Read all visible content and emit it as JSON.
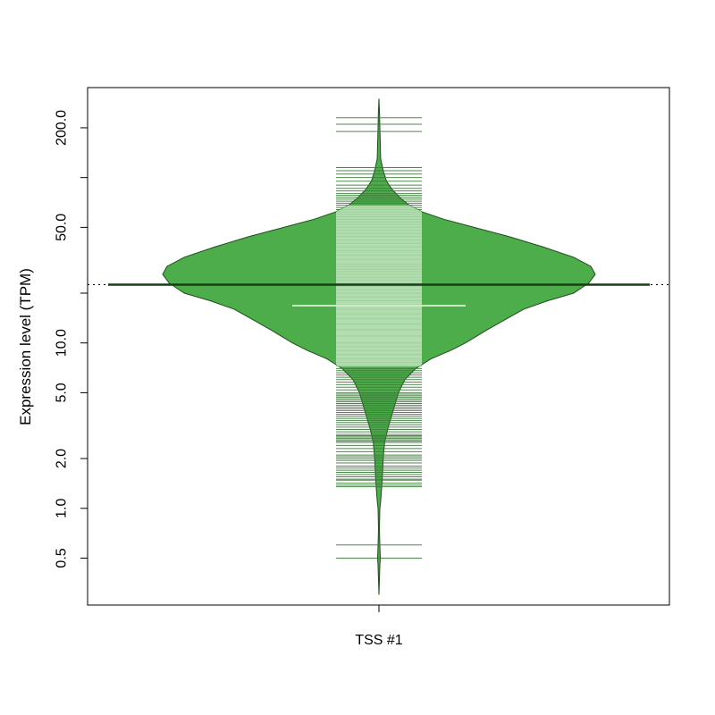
{
  "chart_data": {
    "type": "violin",
    "ylabel": "Expression level (TPM)",
    "y_scale": "log",
    "ylim": [
      0.26,
      350
    ],
    "y_ticks": [
      {
        "value": 0.5,
        "label": "0.5"
      },
      {
        "value": 1.0,
        "label": "1.0"
      },
      {
        "value": 2.0,
        "label": "2.0"
      },
      {
        "value": 5.0,
        "label": "5.0"
      },
      {
        "value": 10.0,
        "label": "10.0"
      },
      {
        "value": 20.0,
        "label": ""
      },
      {
        "value": 50.0,
        "label": "50.0"
      },
      {
        "value": 100.0,
        "label": ""
      },
      {
        "value": 200.0,
        "label": "200.0"
      }
    ],
    "categories": [
      "TSS #1"
    ],
    "overall_mean": 22.5,
    "group": {
      "name": "TSS #1",
      "mean": 22.5,
      "median": 16.8,
      "box_low": 7.2,
      "box_high": 68,
      "min": 0.3,
      "max": 300,
      "density": [
        [
          0.3,
          0.0
        ],
        [
          0.45,
          0.004
        ],
        [
          0.5,
          0.006
        ],
        [
          0.6,
          0.004
        ],
        [
          0.75,
          0.002
        ],
        [
          1.0,
          0.004
        ],
        [
          1.1,
          0.008
        ],
        [
          1.3,
          0.012
        ],
        [
          1.6,
          0.016
        ],
        [
          2.0,
          0.02
        ],
        [
          2.5,
          0.026
        ],
        [
          3.0,
          0.04
        ],
        [
          3.5,
          0.055
        ],
        [
          4.0,
          0.068
        ],
        [
          5.0,
          0.09
        ],
        [
          6.0,
          0.12
        ],
        [
          7.0,
          0.17
        ],
        [
          8.0,
          0.24
        ],
        [
          9.0,
          0.33
        ],
        [
          10.0,
          0.4
        ],
        [
          12.0,
          0.5
        ],
        [
          14.0,
          0.59
        ],
        [
          16.0,
          0.67
        ],
        [
          18.0,
          0.78
        ],
        [
          20.0,
          0.9
        ],
        [
          23.0,
          0.97
        ],
        [
          26.0,
          1.0
        ],
        [
          29.0,
          0.98
        ],
        [
          33.0,
          0.9
        ],
        [
          38.0,
          0.76
        ],
        [
          44.0,
          0.6
        ],
        [
          50.0,
          0.44
        ],
        [
          56.0,
          0.3
        ],
        [
          62.0,
          0.2
        ],
        [
          68.0,
          0.14
        ],
        [
          75.0,
          0.1
        ],
        [
          85.0,
          0.06
        ],
        [
          95.0,
          0.035
        ],
        [
          110.0,
          0.02
        ],
        [
          130.0,
          0.008
        ],
        [
          160.0,
          0.006
        ],
        [
          200.0,
          0.004
        ],
        [
          240.0,
          0.003
        ],
        [
          300.0,
          0.0
        ]
      ],
      "points": [
        0.5,
        0.6,
        1.35,
        1.38,
        1.42,
        1.48,
        1.5,
        1.55,
        1.6,
        1.65,
        1.7,
        1.75,
        1.8,
        1.88,
        1.95,
        2.0,
        2.05,
        2.1,
        2.2,
        2.3,
        2.4,
        2.5,
        2.55,
        2.6,
        2.65,
        2.7,
        2.75,
        2.8,
        2.9,
        3.0,
        3.1,
        3.2,
        3.3,
        3.4,
        3.5,
        3.6,
        3.7,
        3.8,
        3.9,
        4.0,
        4.1,
        4.2,
        4.3,
        4.4,
        4.5,
        4.6,
        4.7,
        4.8,
        4.9,
        5.0,
        5.2,
        5.4,
        5.6,
        5.8,
        6.0,
        6.2,
        6.4,
        6.6,
        6.8,
        7.0,
        7.3,
        7.6,
        8.0,
        8.5,
        9.0,
        9.5,
        10.0,
        11.0,
        12.0,
        13.0,
        14.0,
        15.0,
        16.0,
        17.0,
        18.0,
        19.0,
        20.0,
        21.0,
        22.0,
        23.0,
        24.0,
        25.0,
        26.0,
        27.0,
        28.0,
        29.0,
        30.0,
        32.0,
        34.0,
        36.0,
        38.0,
        40.0,
        42.0,
        44.0,
        46.0,
        48.0,
        50.0,
        52.0,
        54.0,
        56.0,
        58.0,
        60.0,
        62.0,
        64.0,
        66.0,
        68.0,
        70.0,
        72.0,
        74.0,
        76.0,
        78.0,
        80.0,
        83.0,
        86.0,
        90.0,
        95.0,
        100.0,
        105.0,
        110.0,
        115.0,
        190.0,
        210.0,
        230.0
      ]
    },
    "colors": {
      "violin_fill": "#4dad4a",
      "violin_stroke": "#1f4d1d",
      "box_fill": "#b2ddaf",
      "line": "#3a7a38",
      "median": "#cbe8c9",
      "mean": "#1a3d19"
    }
  }
}
